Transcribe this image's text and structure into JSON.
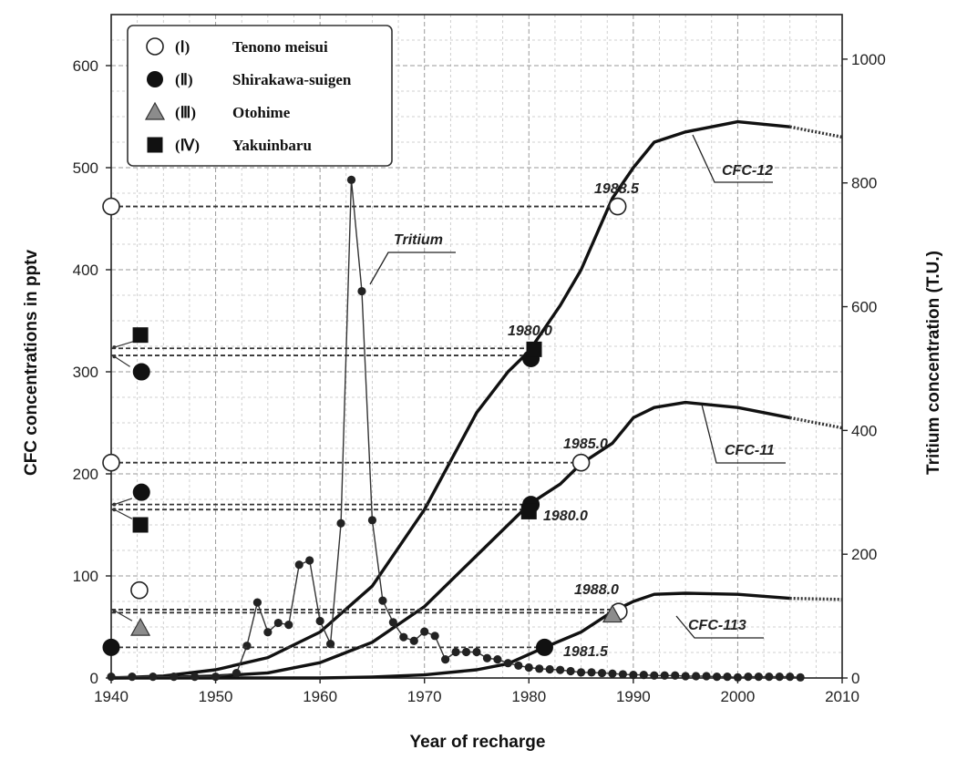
{
  "chart_data": {
    "type": "line",
    "xlabel": "Year of recharge",
    "ylabel": "CFC concentrations in pptv",
    "y2label": "Tritium concentration (T.U.)",
    "xlim": [
      1940,
      2010
    ],
    "ylim": [
      0,
      650
    ],
    "y2lim": [
      0,
      1072
    ],
    "x_ticks": [
      "1940",
      "1950",
      "1960",
      "1970",
      "1980",
      "1990",
      "2000",
      "2010"
    ],
    "y_ticks": [
      "0",
      "100",
      "200",
      "300",
      "400",
      "500",
      "600"
    ],
    "y2_ticks": [
      "0",
      "200",
      "400",
      "600",
      "800",
      "1000"
    ],
    "legend_position": "top-left",
    "legend": [
      {
        "num": "(Ⅰ)",
        "name": "Tenono meisui",
        "marker": "open-circle"
      },
      {
        "num": "(Ⅱ)",
        "name": "Shirakawa-suigen",
        "marker": "filled-circle"
      },
      {
        "num": "(Ⅲ)",
        "name": "Otohime",
        "marker": "gray-triangle"
      },
      {
        "num": "(Ⅳ)",
        "name": "Yakuinbaru",
        "marker": "filled-square"
      }
    ],
    "series": [
      {
        "name": "CFC-12",
        "x": [
          1940,
          1945,
          1950,
          1955,
          1960,
          1965,
          1970,
          1975,
          1978,
          1980,
          1983,
          1985,
          1988,
          1990,
          1992,
          1995,
          2000,
          2005,
          2010
        ],
        "values": [
          0,
          2,
          8,
          20,
          45,
          90,
          165,
          260,
          300,
          320,
          365,
          400,
          470,
          500,
          525,
          535,
          545,
          540,
          530
        ]
      },
      {
        "name": "CFC-11",
        "x": [
          1940,
          1945,
          1950,
          1955,
          1960,
          1965,
          1970,
          1975,
          1978,
          1980,
          1983,
          1985,
          1988,
          1990,
          1992,
          1995,
          2000,
          2005,
          2010
        ],
        "values": [
          0,
          0.5,
          2,
          5,
          15,
          35,
          70,
          120,
          150,
          170,
          190,
          210,
          230,
          255,
          265,
          270,
          265,
          255,
          245
        ]
      },
      {
        "name": "CFC-113",
        "x": [
          1940,
          1950,
          1960,
          1965,
          1970,
          1975,
          1978,
          1981.5,
          1985,
          1988,
          1990,
          1992,
          1995,
          2000,
          2005,
          2010
        ],
        "values": [
          0,
          0,
          0,
          1,
          3,
          8,
          14,
          30,
          45,
          65,
          75,
          82,
          83,
          82,
          78,
          77
        ]
      },
      {
        "name": "Tritium",
        "axis": "y2",
        "x": [
          1940,
          1942,
          1944,
          1946,
          1948,
          1950,
          1952,
          1953,
          1954,
          1955,
          1956,
          1957,
          1958,
          1959,
          1960,
          1961,
          1962,
          1963,
          1964,
          1965,
          1966,
          1967,
          1968,
          1969,
          1970,
          1971,
          1972,
          1973,
          1974,
          1975,
          1976,
          1977,
          1978,
          1979,
          1980,
          1981,
          1982,
          1983,
          1984,
          1985,
          1986,
          1987,
          1988,
          1989,
          1990,
          1991,
          1992,
          1993,
          1994,
          1995,
          1996,
          1997,
          1998,
          1999,
          2000,
          2001,
          2002,
          2003,
          2004,
          2005,
          2006
        ],
        "values": [
          2,
          2,
          2,
          2,
          2,
          2,
          8,
          52,
          122,
          74,
          89,
          86,
          183,
          190,
          92,
          55,
          250,
          805,
          625,
          255,
          125,
          90,
          66,
          60,
          75,
          68,
          30,
          42,
          42,
          42,
          32,
          30,
          24,
          20,
          17,
          15,
          14,
          13,
          11,
          9,
          9,
          8,
          7,
          6,
          5,
          5,
          4,
          4,
          4,
          3,
          3,
          3,
          2,
          2,
          1,
          2,
          2,
          2,
          2,
          2,
          1
        ]
      }
    ],
    "samples": [
      {
        "id": "Ⅰ",
        "marker": "open-circle",
        "CFC-12": 462,
        "CFC-11": 211,
        "CFC-113": 86,
        "ages": {
          "CFC-12": 1988.5,
          "CFC-11": 1985.0,
          "CFC-113": 1988.0
        }
      },
      {
        "id": "Ⅱ",
        "marker": "filled-circle",
        "CFC-12": 300,
        "CFC-11": 182,
        "CFC-113": 30,
        "ages": {
          "CFC-12": 1980.0,
          "CFC-11": 1980.0,
          "CFC-113": 1981.5
        }
      },
      {
        "id": "Ⅲ",
        "marker": "gray-triangle",
        "CFC-113": 49,
        "ages": {
          "CFC-113": 1988.0
        }
      },
      {
        "id": "Ⅳ",
        "marker": "filled-square",
        "CFC-12": 336,
        "CFC-11": 150,
        "ages": {
          "CFC-12": 1980.0,
          "CFC-11": 1980.0
        }
      }
    ],
    "annotations": {
      "curve_labels": [
        "CFC-12",
        "CFC-11",
        "CFC-113",
        "Tritium"
      ],
      "ages": [
        "1988.5",
        "1980.0",
        "1985.0",
        "1980.0",
        "1988.0",
        "1981.5"
      ]
    }
  }
}
